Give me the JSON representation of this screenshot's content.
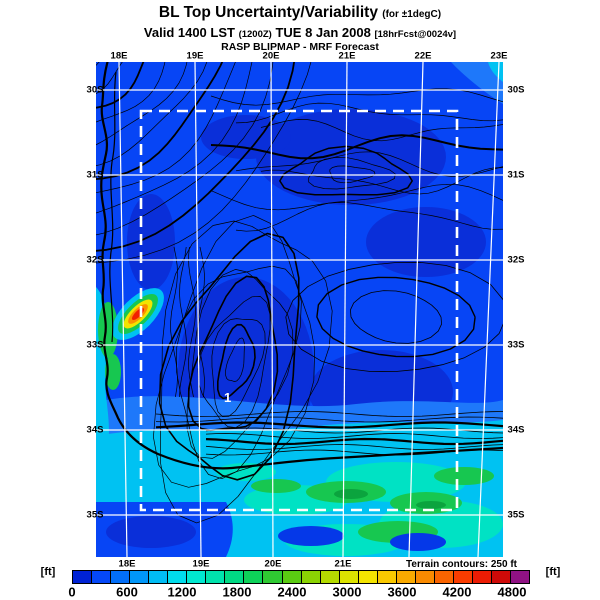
{
  "header": {
    "title": "BL Top Uncertainty/Variability",
    "title_qualifier": "(for ±1degC)",
    "valid_prefix": "Valid 1400 LST",
    "valid_zulu": "(1200Z)",
    "valid_date": "TUE 8 Jan 2008",
    "fcst_tag": "[18hrFcst@0024v]",
    "model_line": "RASP BLIPMAP - MRF Forecast"
  },
  "map": {
    "top_lon_labels": [
      "18E",
      "19E",
      "20E",
      "21E",
      "22E",
      "23E"
    ],
    "bottom_lon_labels": [
      "18E",
      "19E",
      "20E",
      "21E"
    ],
    "left_lat_labels": [
      "30S",
      "31S",
      "32S",
      "33S",
      "34S",
      "35S"
    ],
    "right_lat_labels": [
      "30S",
      "31S",
      "32S",
      "33S",
      "34S",
      "35S"
    ],
    "terrain_note": "Terrain contours: 250 ft",
    "contour_annotation": "1",
    "grid_color": "#ffffff",
    "domain_boundary_style": "white-dashed"
  },
  "colorbar": {
    "unit_left": "[ft]",
    "unit_right": "[ft]",
    "ticks": [
      "0",
      "600",
      "1200",
      "1800",
      "2400",
      "3000",
      "3600",
      "4200",
      "4800"
    ],
    "cells": [
      "#0022D4",
      "#0548F8",
      "#026EF8",
      "#0096F8",
      "#00BCF4",
      "#00DCEC",
      "#00E8D0",
      "#00E2AC",
      "#00DA84",
      "#0ED259",
      "#2FCA32",
      "#5ACB12",
      "#8BD303",
      "#B4DB00",
      "#DCE300",
      "#F4E400",
      "#FAC900",
      "#FAAA00",
      "#FA8A00",
      "#FA6400",
      "#FA3C00",
      "#EC1C04",
      "#CE0A08",
      "#8F1283"
    ]
  },
  "chart_data": {
    "type": "heatmap",
    "title": "BL Top Uncertainty/Variability (for ±1degC)",
    "subtitle": "Valid 1400 LST (1200Z) TUE 8 Jan 2008 [18hrFcst@0024v]",
    "source": "RASP BLIPMAP - MRF Forecast",
    "units": "ft",
    "scale_min": 0,
    "scale_max": 4800,
    "scale_cell_step": 200,
    "scale_ticks": [
      0,
      600,
      1200,
      1800,
      2400,
      3000,
      3600,
      4200,
      4800
    ],
    "lon_ticks_deg_e": [
      18,
      19,
      20,
      21,
      22,
      23
    ],
    "lat_ticks_deg_s": [
      30,
      31,
      32,
      33,
      34,
      35
    ],
    "terrain_contour_interval_ft": 250,
    "notable_features": [
      {
        "name": "hotspot-max-variability",
        "approx_lon_e": 18.3,
        "approx_lat_s": 33.0,
        "approx_value_ft": 4400
      },
      {
        "name": "dominant-field",
        "approx_value_ft": 300
      },
      {
        "name": "south-coast-band",
        "approx_value_ft_range": [
          600,
          1600
        ]
      }
    ]
  }
}
